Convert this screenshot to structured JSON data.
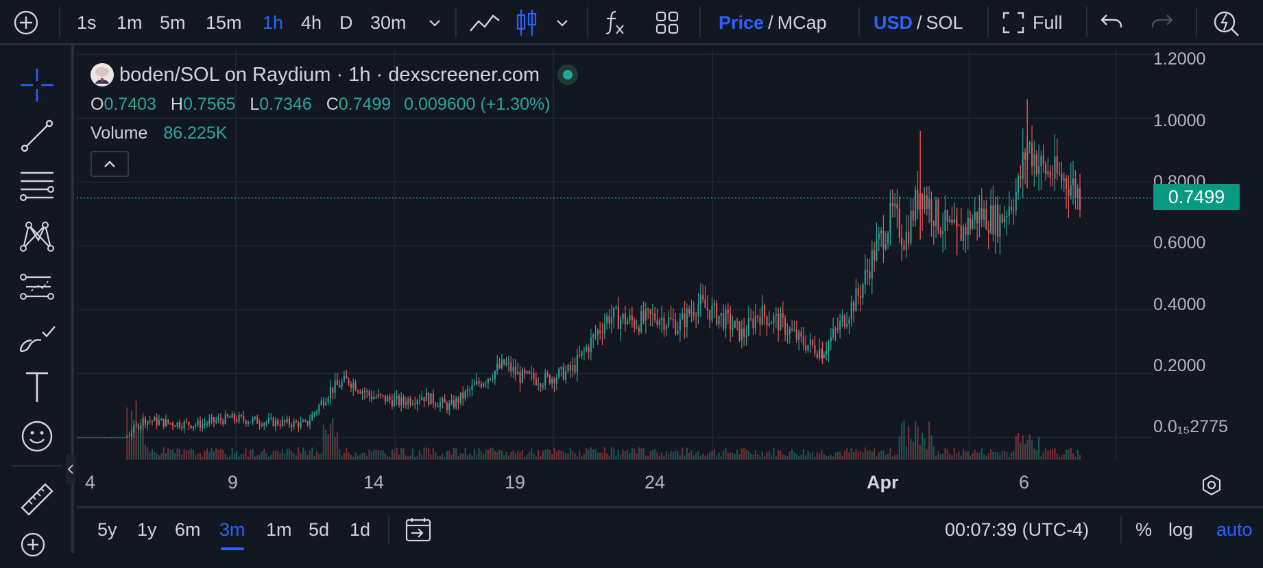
{
  "toolbar": {
    "add_icon": "plus-circle-icon",
    "intervals": [
      "1s",
      "1m",
      "5m",
      "15m",
      "1h",
      "4h",
      "D",
      "30m"
    ],
    "active_interval": "1h",
    "price_label": "Price",
    "mcap_label": "MCap",
    "usd_label": "USD",
    "sol_label": "SOL",
    "full_label": "Full",
    "slash": "/"
  },
  "legend": {
    "title": "boden/SOL on Raydium · 1h · dexscreener.com",
    "o_label": "O",
    "o_value": "0.7403",
    "h_label": "H",
    "h_value": "0.7565",
    "l_label": "L",
    "l_value": "0.7346",
    "c_label": "C",
    "c_value": "0.7499",
    "change": "0.009600 (+1.30%)",
    "volume_label": "Volume",
    "volume_value": "86.225K"
  },
  "chart_data": {
    "type": "candlestick",
    "title": "boden/SOL on Raydium · 1h · dexscreener.com",
    "y_ticks": [
      "1.2000",
      "1.0000",
      "0.8000",
      "0.6000",
      "0.4000",
      "0.2000",
      "0.0₁₅2775"
    ],
    "y_tick_values": [
      1.2,
      1.0,
      0.8,
      0.6,
      0.4,
      0.2,
      0.0
    ],
    "ylim": [
      -0.07,
      1.22
    ],
    "x_ticks": [
      "4",
      "9",
      "14",
      "19",
      "24",
      "Apr",
      "6"
    ],
    "last_price": "0.7499",
    "last_price_value": 0.7499,
    "colors": {
      "up": "#26a69a",
      "down": "#ef5350",
      "grid": "#232733"
    },
    "price_path": [
      {
        "t": 0,
        "p": 0.0
      },
      {
        "t": 1.6,
        "p": 0.0
      },
      {
        "t": 1.8,
        "p": 0.02
      },
      {
        "t": 2.2,
        "p": 0.055
      },
      {
        "t": 3.0,
        "p": 0.045
      },
      {
        "t": 4.0,
        "p": 0.04
      },
      {
        "t": 5.0,
        "p": 0.06
      },
      {
        "t": 6.0,
        "p": 0.05
      },
      {
        "t": 7.5,
        "p": 0.04
      },
      {
        "t": 8.3,
        "p": 0.15
      },
      {
        "t": 8.9,
        "p": 0.18
      },
      {
        "t": 9.6,
        "p": 0.13
      },
      {
        "t": 10.6,
        "p": 0.11
      },
      {
        "t": 11.3,
        "p": 0.13
      },
      {
        "t": 12.2,
        "p": 0.095
      },
      {
        "t": 13.3,
        "p": 0.18
      },
      {
        "t": 14.0,
        "p": 0.23
      },
      {
        "t": 14.5,
        "p": 0.19
      },
      {
        "t": 15.3,
        "p": 0.18
      },
      {
        "t": 16.2,
        "p": 0.21
      },
      {
        "t": 16.9,
        "p": 0.31
      },
      {
        "t": 17.4,
        "p": 0.38
      },
      {
        "t": 18.3,
        "p": 0.36
      },
      {
        "t": 19.0,
        "p": 0.38
      },
      {
        "t": 19.7,
        "p": 0.35
      },
      {
        "t": 20.3,
        "p": 0.42
      },
      {
        "t": 21.2,
        "p": 0.37
      },
      {
        "t": 21.8,
        "p": 0.32
      },
      {
        "t": 22.3,
        "p": 0.39
      },
      {
        "t": 23.0,
        "p": 0.36
      },
      {
        "t": 23.7,
        "p": 0.3
      },
      {
        "t": 24.4,
        "p": 0.27
      },
      {
        "t": 24.9,
        "p": 0.34
      },
      {
        "t": 25.6,
        "p": 0.45
      },
      {
        "t": 26.1,
        "p": 0.58
      },
      {
        "t": 26.7,
        "p": 0.7
      },
      {
        "t": 27.1,
        "p": 0.62
      },
      {
        "t": 27.6,
        "p": 0.78
      },
      {
        "t": 28.2,
        "p": 0.68
      },
      {
        "t": 28.8,
        "p": 0.63
      },
      {
        "t": 29.5,
        "p": 0.7
      },
      {
        "t": 30.2,
        "p": 0.68
      },
      {
        "t": 30.8,
        "p": 0.78
      },
      {
        "t": 31.1,
        "p": 0.92
      },
      {
        "t": 31.6,
        "p": 0.84
      },
      {
        "t": 32.0,
        "p": 0.82
      },
      {
        "t": 32.5,
        "p": 0.8
      },
      {
        "t": 32.9,
        "p": 0.75
      }
    ],
    "highlights": [
      {
        "t": 27.6,
        "h": 0.96,
        "l": 0.62
      },
      {
        "t": 31.1,
        "h": 1.06,
        "l": 0.78
      },
      {
        "t": 28.8,
        "h": 0.72,
        "l": 0.57
      },
      {
        "t": 24.4,
        "h": 0.3,
        "l": 0.23
      }
    ]
  },
  "x_axis": {
    "labels": [
      {
        "text": "4"
      },
      {
        "text": "9"
      },
      {
        "text": "14"
      },
      {
        "text": "19"
      },
      {
        "text": "24"
      },
      {
        "text": "Apr"
      },
      {
        "text": "6"
      }
    ]
  },
  "bottom": {
    "ranges": [
      "5y",
      "1y",
      "6m",
      "3m",
      "1m",
      "5d",
      "1d"
    ],
    "active_range": "3m",
    "clock": "00:07:39 (UTC-4)",
    "percent": "%",
    "log": "log",
    "auto": "auto"
  }
}
